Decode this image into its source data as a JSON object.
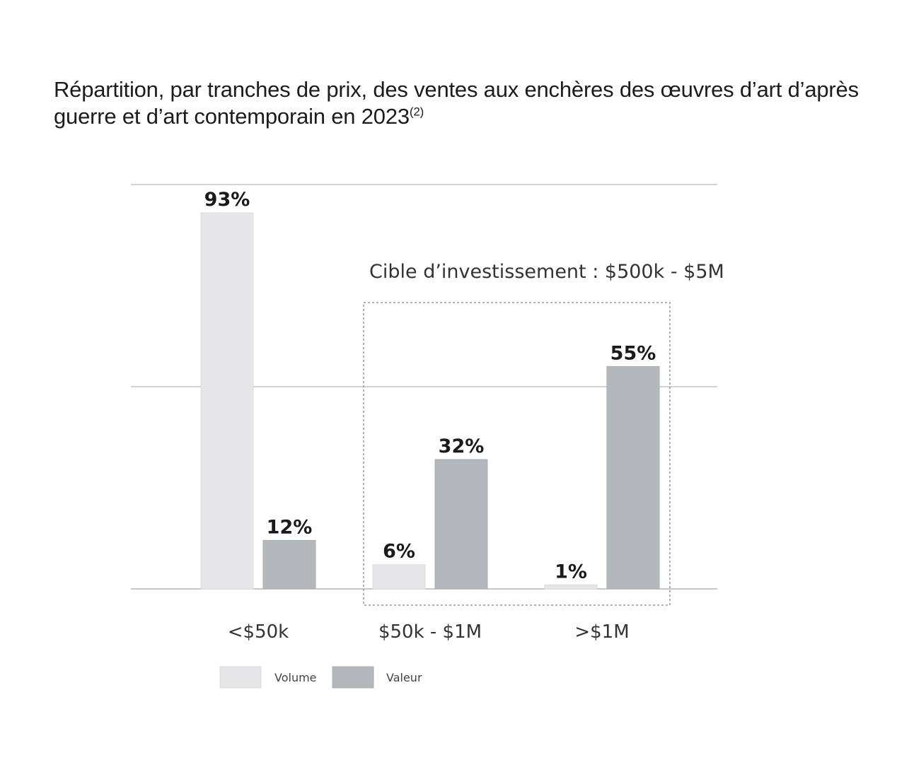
{
  "title": {
    "text": "Répartition, par tranches de prix, des ventes aux enchères des œuvres d’art d’après guerre et d’art contemporain en 2023",
    "superscript": "(2)"
  },
  "annotation": {
    "label": "Cible d’investissement : $500k - $5M"
  },
  "chart_data": {
    "type": "bar",
    "title": "Répartition, par tranches de prix, des ventes aux enchères des œuvres d’art d’après guerre et d’art contemporain en 2023",
    "xlabel": "",
    "ylabel": "",
    "ylim": [
      0,
      100
    ],
    "grid": true,
    "legend_position": "bottom-left",
    "categories": [
      "<$50k",
      "$50k - $1M",
      ">$1M"
    ],
    "series": [
      {
        "name": "Volume",
        "color": "#e6e6e8",
        "values": [
          93,
          6,
          1
        ],
        "labels": [
          "93%",
          "6%",
          "1%"
        ]
      },
      {
        "name": "Valeur",
        "color": "#b4b8bc",
        "values": [
          12,
          32,
          55
        ],
        "labels": [
          "12%",
          "32%",
          "55%"
        ]
      }
    ]
  }
}
